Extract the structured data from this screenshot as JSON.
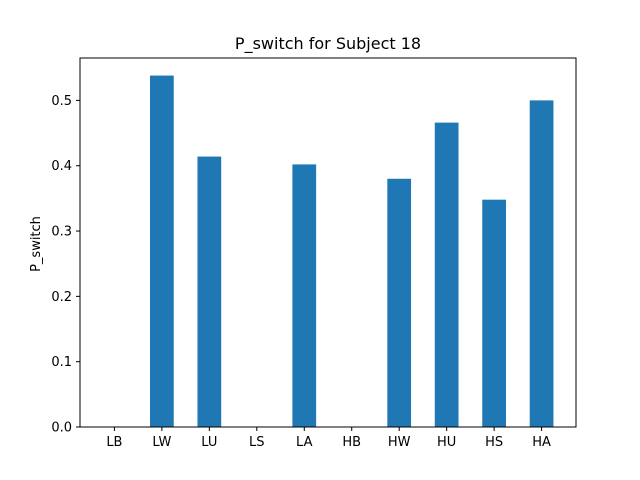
{
  "chart_data": {
    "type": "bar",
    "title": "P_switch for Subject 18",
    "xlabel": "",
    "ylabel": "P_switch",
    "categories": [
      "LB",
      "LW",
      "LU",
      "LS",
      "LA",
      "HB",
      "HW",
      "HU",
      "HS",
      "HA"
    ],
    "values": [
      0.0,
      0.538,
      0.414,
      0.0,
      0.402,
      0.0,
      0.38,
      0.466,
      0.348,
      0.5
    ],
    "ylim": [
      0,
      0.5649
    ],
    "yticks": [
      0.0,
      0.1,
      0.2,
      0.3,
      0.4,
      0.5
    ],
    "ytick_labels": [
      "0.0",
      "0.1",
      "0.2",
      "0.3",
      "0.4",
      "0.5"
    ],
    "bar_color": "#1f77b4",
    "grid": false,
    "legend": "none"
  }
}
